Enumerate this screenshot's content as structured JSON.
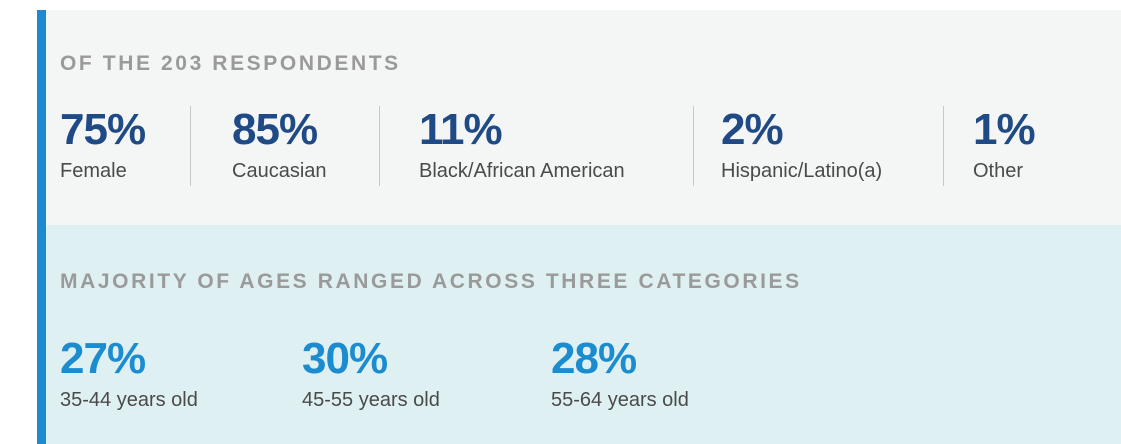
{
  "respondents": {
    "heading": "OF THE 203 RESPONDENTS",
    "stats": [
      {
        "value": "75%",
        "label": "Female"
      },
      {
        "value": "85%",
        "label": "Caucasian"
      },
      {
        "value": "11%",
        "label": "Black/African American"
      },
      {
        "value": "2%",
        "label": "Hispanic/Latino(a)"
      },
      {
        "value": "1%",
        "label": "Other"
      }
    ]
  },
  "ages": {
    "heading": "MAJORITY OF AGES RANGED ACROSS THREE CATEGORIES",
    "stats": [
      {
        "value": "27%",
        "label": "35-44 years old"
      },
      {
        "value": "30%",
        "label": "45-55 years old"
      },
      {
        "value": "28%",
        "label": "55-64 years old"
      }
    ]
  }
}
